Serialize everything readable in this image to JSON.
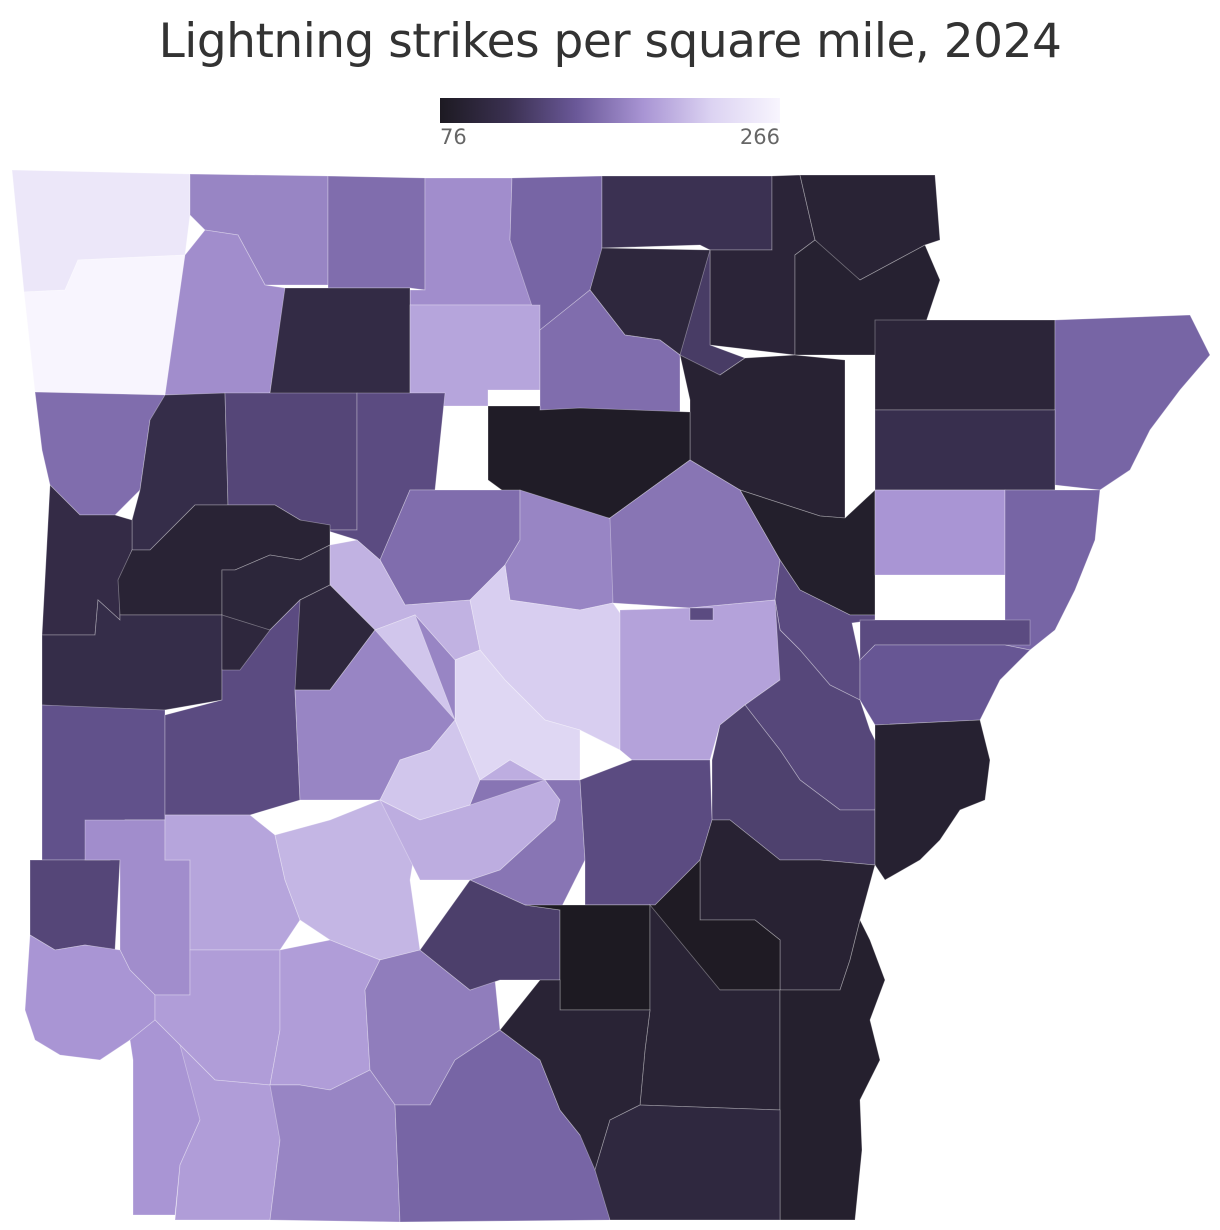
{
  "title": "Lightning strikes per square mile, 2024",
  "legend": {
    "min_label": "76",
    "max_label": "266",
    "min": 76,
    "max": 266,
    "colors": [
      "#1d1a22",
      "#3a3050",
      "#6a5898",
      "#a995d4",
      "#dcd3f2",
      "#f8f5fe"
    ]
  },
  "chart_data": {
    "type": "choropleth",
    "scale": {
      "min": 76,
      "max": 266
    },
    "regions": [
      {
        "id": "benton",
        "value": 250
      },
      {
        "id": "carroll",
        "value": 180
      },
      {
        "id": "boone",
        "value": 165
      },
      {
        "id": "marion",
        "value": 185
      },
      {
        "id": "baxter",
        "value": 160
      },
      {
        "id": "fulton",
        "value": 115
      },
      {
        "id": "sharp",
        "value": 98
      },
      {
        "id": "randolph",
        "value": 94
      },
      {
        "id": "clay",
        "value": 92
      },
      {
        "id": "greene",
        "value": 88
      },
      {
        "id": "washington",
        "value": 266
      },
      {
        "id": "madison",
        "value": 185
      },
      {
        "id": "newton",
        "value": 105
      },
      {
        "id": "searcy",
        "value": 200
      },
      {
        "id": "stone",
        "value": 165
      },
      {
        "id": "izard",
        "value": 125
      },
      {
        "id": "lawrence",
        "value": 90
      },
      {
        "id": "craighead",
        "value": 95
      },
      {
        "id": "mississippi",
        "value": 160
      },
      {
        "id": "independence",
        "value": 80
      },
      {
        "id": "jackson",
        "value": 84
      },
      {
        "id": "poinsett",
        "value": 112
      },
      {
        "id": "crawford",
        "value": 165
      },
      {
        "id": "franklin",
        "value": 108
      },
      {
        "id": "johnson",
        "value": 135
      },
      {
        "id": "pope",
        "value": 140
      },
      {
        "id": "van-buren",
        "value": 165
      },
      {
        "id": "cleburne",
        "value": 180
      },
      {
        "id": "white",
        "value": 170
      },
      {
        "id": "woodruff",
        "value": 140
      },
      {
        "id": "cross",
        "value": 190
      },
      {
        "id": "crittenden",
        "value": 160
      },
      {
        "id": "sebastian",
        "value": 106
      },
      {
        "id": "logan",
        "value": 92
      },
      {
        "id": "yell",
        "value": 96
      },
      {
        "id": "conway",
        "value": 208
      },
      {
        "id": "faulkner",
        "value": 225
      },
      {
        "id": "st-francis",
        "value": 140
      },
      {
        "id": "scott",
        "value": 108
      },
      {
        "id": "perry",
        "value": 98
      },
      {
        "id": "pulaski",
        "value": 232
      },
      {
        "id": "lonoke",
        "value": 198
      },
      {
        "id": "prairie",
        "value": 140
      },
      {
        "id": "monroe",
        "value": 136
      },
      {
        "id": "lee",
        "value": 150
      },
      {
        "id": "polk",
        "value": 145
      },
      {
        "id": "montgomery",
        "value": 140
      },
      {
        "id": "garland",
        "value": 180
      },
      {
        "id": "saline",
        "value": 220
      },
      {
        "id": "arkansas",
        "value": 130
      },
      {
        "id": "phillips",
        "value": 88
      },
      {
        "id": "sevier",
        "value": 135
      },
      {
        "id": "howard",
        "value": 185
      },
      {
        "id": "pike",
        "value": 200
      },
      {
        "id": "clark",
        "value": 210
      },
      {
        "id": "hot-spring",
        "value": 205
      },
      {
        "id": "grant",
        "value": 170
      },
      {
        "id": "jefferson",
        "value": 140
      },
      {
        "id": "desha",
        "value": 90
      },
      {
        "id": "lincoln",
        "value": 78
      },
      {
        "id": "little-river",
        "value": 190
      },
      {
        "id": "hempstead",
        "value": 195
      },
      {
        "id": "nevada",
        "value": 195
      },
      {
        "id": "ouachita",
        "value": 175
      },
      {
        "id": "calhoun",
        "value": 128
      },
      {
        "id": "cleveland",
        "value": 76
      },
      {
        "id": "drew",
        "value": 92
      },
      {
        "id": "chicot",
        "value": 86
      },
      {
        "id": "miller",
        "value": 190
      },
      {
        "id": "lafayette",
        "value": 195
      },
      {
        "id": "columbia",
        "value": 180
      },
      {
        "id": "union",
        "value": 160
      },
      {
        "id": "bradley",
        "value": 92
      },
      {
        "id": "ashley",
        "value": 100
      }
    ]
  }
}
